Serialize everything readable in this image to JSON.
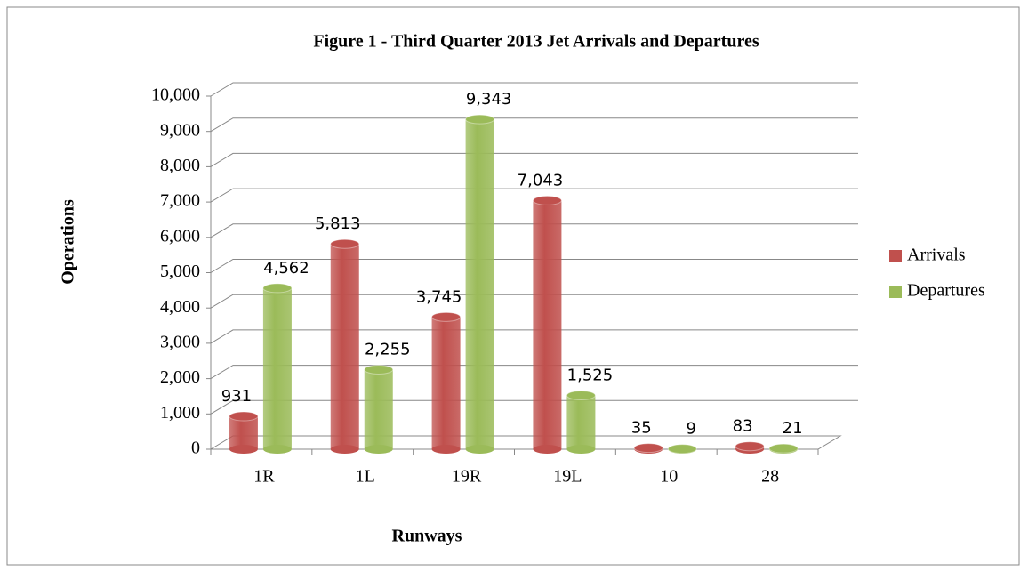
{
  "chart_data": {
    "type": "bar",
    "title": "Figure 1 - Third Quarter 2013 Jet Arrivals and Departures",
    "x_label": "Runways",
    "y_label": "Operations",
    "categories": [
      "1R",
      "1L",
      "19R",
      "19L",
      "10",
      "28"
    ],
    "series": [
      {
        "name": "Arrivals",
        "color": "#c0504d",
        "values": [
          931,
          5813,
          3745,
          7043,
          35,
          83
        ],
        "value_labels": [
          "931",
          "5,813",
          "3,745",
          "7,043",
          "35",
          "83"
        ]
      },
      {
        "name": "Departures",
        "color": "#9bbb59",
        "values": [
          4562,
          2255,
          9343,
          1525,
          9,
          21
        ],
        "value_labels": [
          "4,562",
          "2,255",
          "9,343",
          "1,525",
          "9",
          "21"
        ]
      }
    ],
    "ylim": [
      0,
      10000
    ],
    "yticks": [
      0,
      {
        "value": 1000,
        "label": "1,000"
      },
      {
        "value": 2000,
        "label": "2,000"
      },
      {
        "value": 3000,
        "label": "3,000"
      },
      {
        "value": 4000,
        "label": "4,000"
      },
      {
        "value": 5000,
        "label": "5,000"
      },
      {
        "value": 6000,
        "label": "6,000"
      },
      {
        "value": 7000,
        "label": "7,000"
      },
      {
        "value": 8000,
        "label": "8,000"
      },
      {
        "value": 9000,
        "label": "9,000"
      },
      {
        "value": 10000,
        "label": "10,000"
      }
    ],
    "grid": true,
    "legend": "right"
  }
}
